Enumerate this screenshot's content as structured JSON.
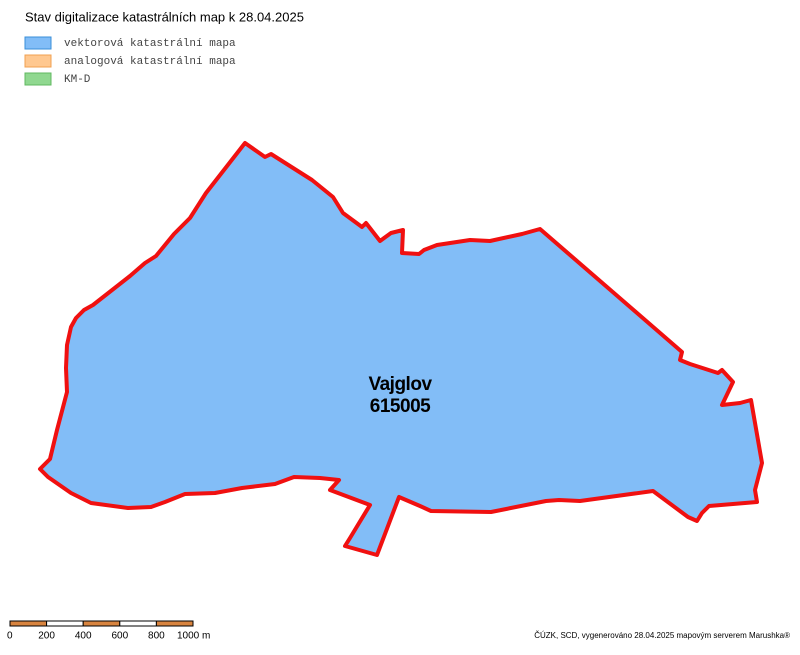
{
  "header": {
    "title": "Stav digitalizace katastrálních map k 28.04.2025"
  },
  "legend": [
    {
      "label": "vektorová katastrální mapa"
    },
    {
      "label": "analogová katastrální mapa"
    },
    {
      "label": "KM-D"
    }
  ],
  "area": {
    "name": "Vajglov",
    "code": "615005"
  },
  "scale": {
    "labels": [
      "0",
      "200",
      "400",
      "600",
      "800",
      "1000 m"
    ]
  },
  "footer": {
    "credit": "ČÚZK, SCD, vygenerováno 28.04.2025 mapovým serverem Marushka®"
  }
}
